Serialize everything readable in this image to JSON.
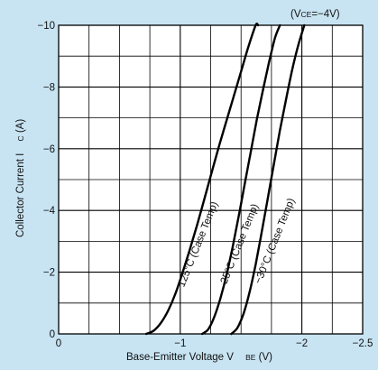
{
  "chart_data": {
    "type": "line",
    "condition": {
      "prefix": "(V",
      "subscript": "CE",
      "suffix": "=−4V)"
    },
    "xlabel": {
      "main": "Base-Emitter Voltage V",
      "subscript": "BE",
      "unit": "(V)"
    },
    "ylabel": {
      "main": "Collector Current I",
      "subscript": "C",
      "unit": "(A)"
    },
    "xlim": [
      0,
      -2.5
    ],
    "ylim": [
      0,
      -10
    ],
    "x_major_ticks": [
      0,
      -1,
      -2,
      -2.5
    ],
    "x_tick_labels": [
      "0",
      "−1",
      "−2",
      "−2.5"
    ],
    "y_major_ticks": [
      0,
      -2,
      -4,
      -6,
      -8,
      -10
    ],
    "y_tick_labels": [
      "0",
      "−2",
      "−4",
      "−6",
      "−8",
      "−10"
    ],
    "grid": true,
    "series": [
      {
        "name": "125°C (Case Temp)",
        "x": [
          -0.72,
          -0.78,
          -0.84,
          -0.9,
          -0.96,
          -1.02,
          -1.08,
          -1.14,
          -1.2,
          -1.26,
          -1.32,
          -1.38,
          -1.44,
          -1.5,
          -1.56,
          -1.62,
          -1.64
        ],
        "y": [
          0,
          -0.1,
          -0.35,
          -0.75,
          -1.3,
          -2.0,
          -2.75,
          -3.55,
          -4.4,
          -5.25,
          -6.1,
          -6.9,
          -7.7,
          -8.5,
          -9.3,
          -10.0,
          -10.0
        ]
      },
      {
        "name": "25°C (Case Temp)",
        "x": [
          -1.18,
          -1.23,
          -1.28,
          -1.33,
          -1.38,
          -1.43,
          -1.48,
          -1.53,
          -1.58,
          -1.63,
          -1.68,
          -1.73,
          -1.78,
          -1.82
        ],
        "y": [
          0,
          -0.15,
          -0.55,
          -1.15,
          -1.9,
          -2.8,
          -3.8,
          -4.85,
          -5.9,
          -6.95,
          -7.9,
          -8.8,
          -9.6,
          -10.0
        ]
      },
      {
        "name": "−30°C (Case Temp)",
        "x": [
          -1.42,
          -1.47,
          -1.52,
          -1.57,
          -1.62,
          -1.67,
          -1.72,
          -1.77,
          -1.82,
          -1.87,
          -1.92,
          -1.97,
          -2.02
        ],
        "y": [
          0,
          -0.2,
          -0.65,
          -1.35,
          -2.25,
          -3.3,
          -4.4,
          -5.5,
          -6.6,
          -7.6,
          -8.55,
          -9.35,
          -10.0
        ]
      }
    ]
  }
}
